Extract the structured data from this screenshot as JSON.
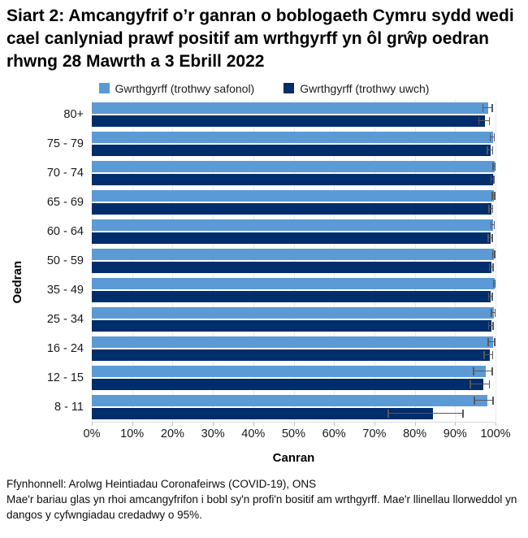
{
  "title": "Siart 2: Amcangyfrif o’r ganran o boblogaeth Cymru sydd wedi cael canlyniad prawf positif am wrthgyrff yn ôl grŵp oedran rhwng 28 Mawrth a 3 Ebrill 2022",
  "colors": {
    "series_standard": "#5B9AD5",
    "series_higher": "#002D6B",
    "error_bar": "#595959",
    "gridline": "#E7ECF1"
  },
  "chart_data": {
    "type": "bar",
    "orientation": "horizontal",
    "title": "Siart 2: Amcangyfrif o’r ganran o boblogaeth Cymru sydd wedi cael canlyniad prawf positif am wrthgyrff yn ôl grŵp oedran rhwng 28 Mawrth a 3 Ebrill 2022",
    "xlabel": "Canran",
    "ylabel": "Oedran",
    "xlim": [
      0,
      100
    ],
    "x_ticks": [
      "0%",
      "10%",
      "20%",
      "30%",
      "40%",
      "50%",
      "60%",
      "70%",
      "80%",
      "90%",
      "100%"
    ],
    "grid": true,
    "legend_position": "top",
    "error_bars": "95% credible intervals",
    "categories": [
      "80+",
      "75 - 79",
      "70 - 74",
      "65 - 69",
      "60 - 64",
      "50 - 59",
      "35 - 49",
      "25 - 34",
      "16 - 24",
      "12 - 15",
      "8 - 11"
    ],
    "series": [
      {
        "name": "Gwrthgyrff (trothwy safonol)",
        "color": "#5B9AD5",
        "values": [
          98.2,
          99.3,
          99.7,
          99.6,
          99.4,
          99.6,
          99.8,
          99.6,
          99.4,
          97.6,
          98.0
        ],
        "ci_low": [
          96.9,
          98.7,
          99.4,
          99.2,
          98.9,
          99.3,
          99.5,
          99.0,
          98.2,
          94.6,
          94.8
        ],
        "ci_high": [
          99.2,
          99.7,
          99.9,
          99.8,
          99.7,
          99.8,
          99.9,
          99.9,
          99.8,
          99.2,
          99.4
        ]
      },
      {
        "name": "Gwrthgyrff (trothwy uwch)",
        "color": "#002D6B",
        "values": [
          97.4,
          98.8,
          99.3,
          98.9,
          98.8,
          99.0,
          98.8,
          99.0,
          98.6,
          96.9,
          84.6
        ],
        "ci_low": [
          95.9,
          98.0,
          98.9,
          98.4,
          98.2,
          98.5,
          98.3,
          98.3,
          97.2,
          93.8,
          73.4
        ],
        "ci_high": [
          98.5,
          99.3,
          99.6,
          99.3,
          99.2,
          99.4,
          99.2,
          99.4,
          99.3,
          98.5,
          91.9
        ]
      }
    ]
  },
  "footer": {
    "source": "Ffynhonnell: Arolwg Heintiadau Coronafeirws (COVID-19), ONS",
    "note": "Mae'r bariau glas yn rhoi amcangyfrifon i bobl sy'n profi'n bositif am wrthgyrff. Mae'r llinellau llorweddol yn dangos y cyfwngiadau credadwy o 95%."
  }
}
